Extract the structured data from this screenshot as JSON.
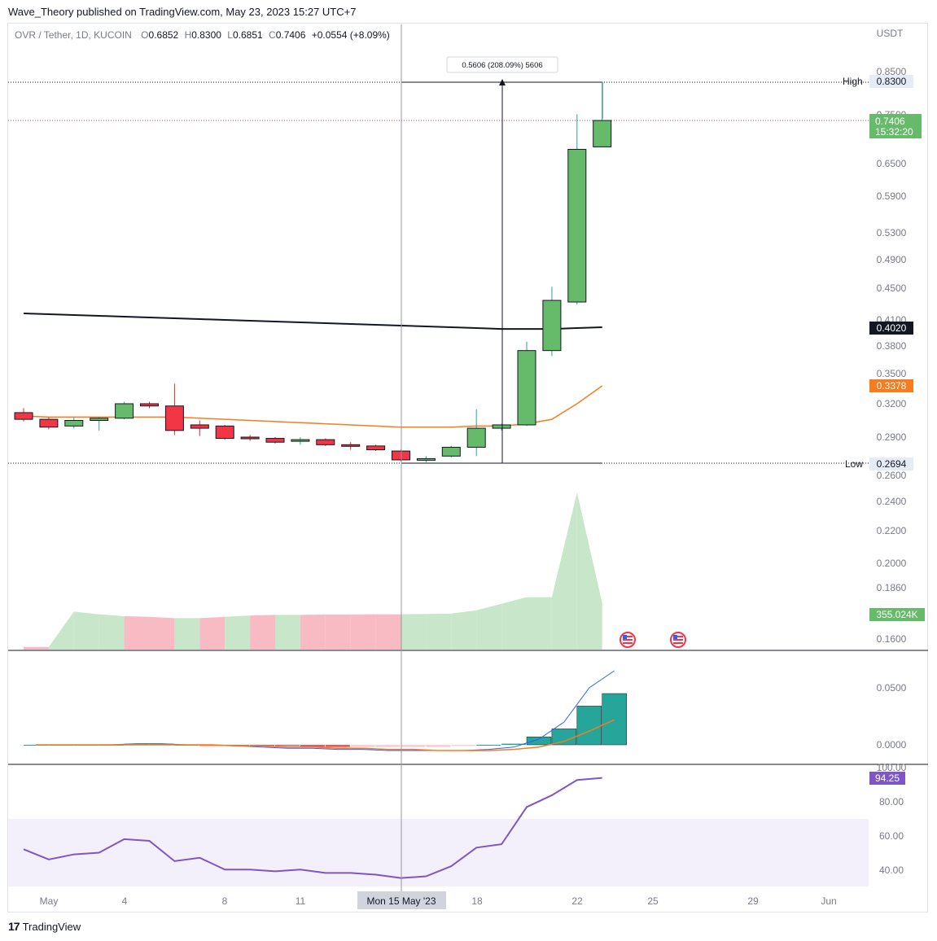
{
  "header": {
    "publisher": "Wave_Theory published on TradingView.com, May 23, 2023 15:27 UTC+7",
    "symbol": "OVR / Tether, 1D, KUCOIN",
    "o_label": "O",
    "o_value": "0.6852",
    "h_label": "H",
    "h_value": "0.8300",
    "l_label": "L",
    "l_value": "0.6851",
    "c_label": "C",
    "c_value": "0.7406",
    "change": "+0.0554 (+8.09%)"
  },
  "price_axis": {
    "currency": "USDT",
    "ticks": [
      "0.8500",
      "0.7500",
      "0.6500",
      "0.5900",
      "0.5300",
      "0.4900",
      "0.4500",
      "0.4100",
      "0.3800",
      "0.3500",
      "0.3200",
      "0.2900",
      "0.2600",
      "0.2400",
      "0.2200",
      "0.2000",
      "0.1860",
      "0.1600"
    ]
  },
  "labels": {
    "high_word": "High",
    "high_value": "0.8300",
    "low_word": "Low",
    "low_value": "0.2694",
    "last_price": "0.7406",
    "countdown": "15:32:20",
    "ma200_value": "0.4020",
    "ma_orange_value": "0.3378",
    "volume_value": "355.024K",
    "measure": "0.5606 (208.09%) 5606"
  },
  "macd_axis": {
    "ticks": [
      "0.0500",
      "0.0000"
    ]
  },
  "rsi_axis": {
    "ticks": [
      "100.00",
      "80.00",
      "60.00",
      "40.00"
    ],
    "value": "94.25"
  },
  "time_axis": {
    "ticks": [
      "May",
      "4",
      "8",
      "11",
      "18",
      "22",
      "25",
      "29",
      "Jun"
    ],
    "crosshair": "Mon 15 May '23"
  },
  "footer": {
    "brand": "TradingView"
  },
  "colors": {
    "up": "#66bb6a",
    "down": "#f23645",
    "ma200": "#131722",
    "ma_orange": "#f57c1f",
    "rsi": "#7e57c2",
    "macd_hist": "#26a69a",
    "macd_line": "#2962ff"
  },
  "chart_data": {
    "type": "candlestick",
    "x_dates": [
      "2023-04-30",
      "2023-05-01",
      "2023-05-02",
      "2023-05-03",
      "2023-05-04",
      "2023-05-05",
      "2023-05-06",
      "2023-05-07",
      "2023-05-08",
      "2023-05-09",
      "2023-05-10",
      "2023-05-11",
      "2023-05-12",
      "2023-05-13",
      "2023-05-14",
      "2023-05-15",
      "2023-05-16",
      "2023-05-17",
      "2023-05-18",
      "2023-05-19",
      "2023-05-20",
      "2023-05-21",
      "2023-05-22",
      "2023-05-23"
    ],
    "ohlc": [
      [
        0.312,
        0.316,
        0.304,
        0.306
      ],
      [
        0.306,
        0.308,
        0.297,
        0.299
      ],
      [
        0.3,
        0.308,
        0.298,
        0.305
      ],
      [
        0.305,
        0.308,
        0.296,
        0.307
      ],
      [
        0.307,
        0.322,
        0.306,
        0.32
      ],
      [
        0.32,
        0.322,
        0.316,
        0.318
      ],
      [
        0.318,
        0.34,
        0.292,
        0.296
      ],
      [
        0.301,
        0.305,
        0.291,
        0.298
      ],
      [
        0.3,
        0.301,
        0.288,
        0.289
      ],
      [
        0.29,
        0.292,
        0.287,
        0.289
      ],
      [
        0.289,
        0.29,
        0.285,
        0.286
      ],
      [
        0.287,
        0.29,
        0.284,
        0.288
      ],
      [
        0.288,
        0.289,
        0.283,
        0.284
      ],
      [
        0.284,
        0.286,
        0.28,
        0.283
      ],
      [
        0.283,
        0.284,
        0.279,
        0.28
      ],
      [
        0.279,
        0.28,
        0.271,
        0.272
      ],
      [
        0.272,
        0.275,
        0.27,
        0.273
      ],
      [
        0.275,
        0.283,
        0.274,
        0.282
      ],
      [
        0.282,
        0.315,
        0.275,
        0.298
      ],
      [
        0.298,
        0.302,
        0.296,
        0.301
      ],
      [
        0.301,
        0.385,
        0.3,
        0.375
      ],
      [
        0.375,
        0.452,
        0.369,
        0.435
      ],
      [
        0.433,
        0.755,
        0.43,
        0.68
      ],
      [
        0.6852,
        0.83,
        0.6851,
        0.7406
      ]
    ],
    "ma200": [
      0.419,
      0.418,
      0.417,
      0.416,
      0.415,
      0.414,
      0.413,
      0.412,
      0.411,
      0.41,
      0.409,
      0.408,
      0.407,
      0.406,
      0.405,
      0.404,
      0.403,
      0.402,
      0.401,
      0.4,
      0.4,
      0.4,
      0.401,
      0.402
    ],
    "ma_orange": [
      0.309,
      0.308,
      0.308,
      0.308,
      0.308,
      0.308,
      0.308,
      0.307,
      0.306,
      0.305,
      0.304,
      0.303,
      0.302,
      0.301,
      0.3,
      0.299,
      0.299,
      0.299,
      0.3,
      0.3,
      0.302,
      0.306,
      0.32,
      0.3378
    ],
    "volume": [
      20000,
      20000,
      290000,
      270000,
      255000,
      250000,
      240000,
      240000,
      250000,
      260000,
      265000,
      265000,
      268000,
      268000,
      270000,
      270000,
      272000,
      275000,
      300000,
      350000,
      400000,
      400000,
      1200000,
      355024
    ],
    "volume_up": [
      false,
      false,
      true,
      true,
      true,
      false,
      false,
      true,
      false,
      true,
      false,
      true,
      false,
      false,
      false,
      false,
      true,
      true,
      true,
      true,
      true,
      true,
      true,
      true
    ],
    "macd": [
      0.0,
      0.0,
      0.0,
      0.0,
      0.001,
      0.001,
      0.0,
      0.0,
      -0.001,
      -0.002,
      -0.003,
      -0.003,
      -0.004,
      -0.004,
      -0.005,
      -0.005,
      -0.005,
      -0.005,
      -0.004,
      -0.002,
      0.005,
      0.02,
      0.05,
      0.065
    ],
    "macd_signal": [
      0.0,
      0.0,
      0.0,
      0.0,
      0.0,
      0.0,
      0.0,
      0.0,
      -0.001,
      -0.001,
      -0.002,
      -0.002,
      -0.003,
      -0.003,
      -0.004,
      -0.004,
      -0.005,
      -0.005,
      -0.005,
      -0.004,
      -0.002,
      0.003,
      0.012,
      0.022
    ],
    "macd_hist": [
      0.0,
      0.0,
      0.0,
      0.0,
      0.001,
      0.001,
      0.0,
      -0.001,
      -0.001,
      -0.001,
      -0.001,
      -0.002,
      -0.002,
      -0.002,
      -0.002,
      -0.002,
      -0.002,
      -0.001,
      0.0,
      0.001,
      0.007,
      0.014,
      0.034,
      0.045
    ],
    "rsi": [
      52,
      46,
      49,
      50,
      58,
      57,
      45,
      47,
      40,
      40,
      39,
      40,
      38,
      38,
      37,
      35,
      36,
      42,
      53,
      55,
      77,
      84,
      93,
      94.25
    ],
    "rsi_band": [
      30,
      70
    ],
    "measure": {
      "from": 0.2694,
      "to": 0.83,
      "change": "0.5606 (208.09%) 5606"
    },
    "high": 0.83,
    "low": 0.2694
  }
}
